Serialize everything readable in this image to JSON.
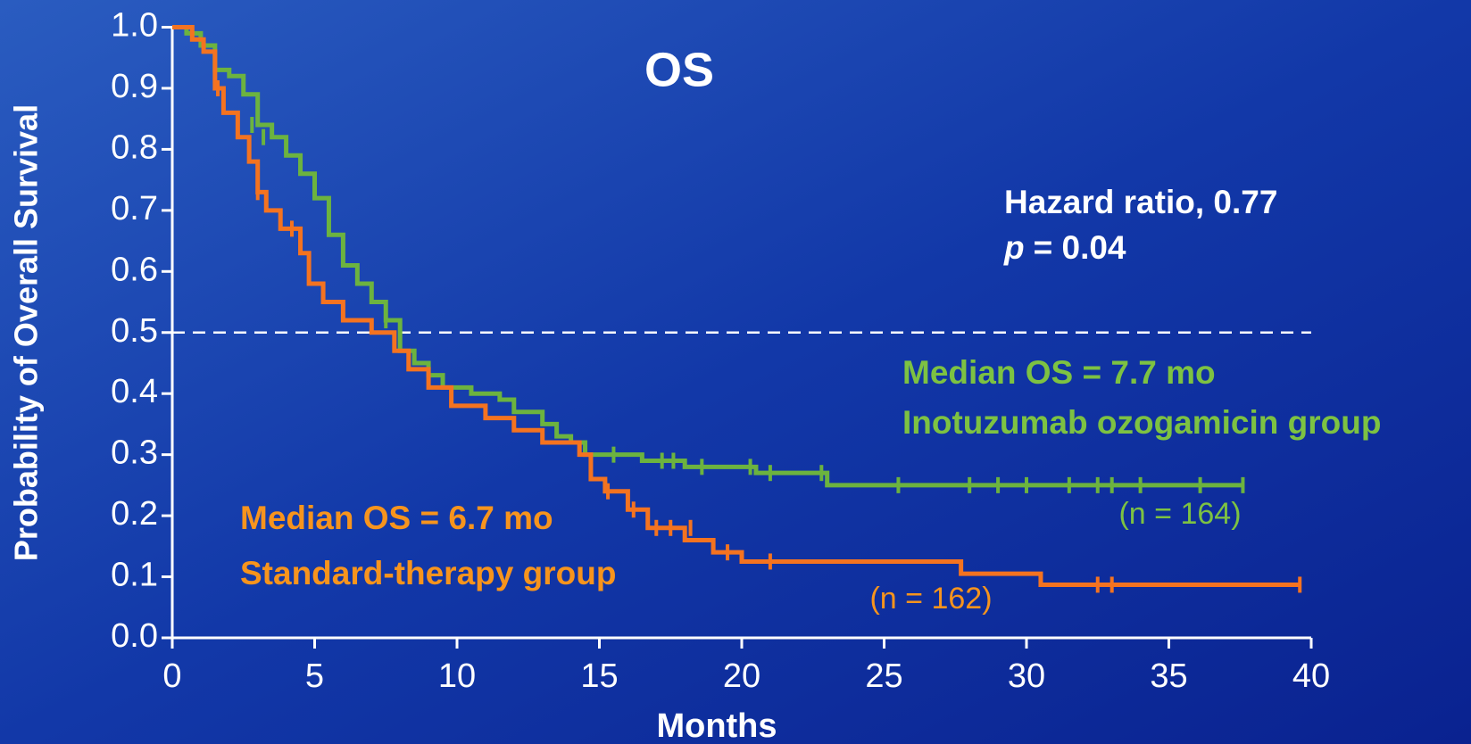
{
  "chart_data": {
    "type": "step",
    "title": "OS",
    "xlabel": "Months",
    "ylabel": "Probability of Overall Survival",
    "xlim": [
      0,
      40
    ],
    "ylim": [
      0,
      1
    ],
    "xticks": [
      0,
      5,
      10,
      15,
      20,
      25,
      30,
      35,
      40
    ],
    "yticks": [
      {
        "value": 0,
        "label": "0.0"
      },
      {
        "value": 0.1,
        "label": "0.1"
      },
      {
        "value": 0.2,
        "label": "0.2"
      },
      {
        "value": 0.3,
        "label": "0.3"
      },
      {
        "value": 0.4,
        "label": "0.4"
      },
      {
        "value": 0.5,
        "label": "0.5"
      },
      {
        "value": 0.6,
        "label": "0.6"
      },
      {
        "value": 0.7,
        "label": "0.7"
      },
      {
        "value": 0.8,
        "label": "0.8"
      },
      {
        "value": 0.9,
        "label": "0.9"
      },
      {
        "value": 1,
        "label": "1.0"
      }
    ],
    "reference_line": 0.5,
    "series": [
      {
        "name": "Inotuzumab ozogamicin group",
        "color": "#6cb33f",
        "x": [
          0,
          0.5,
          1,
          1.5,
          2,
          2.5,
          3,
          3.5,
          4,
          4.5,
          5,
          5.5,
          6,
          6.5,
          7,
          7.5,
          8,
          8.5,
          9,
          9.5,
          10.5,
          11.5,
          12,
          13,
          13.5,
          14,
          14.5,
          16.5,
          18,
          20.5,
          23,
          37.6
        ],
        "values": [
          1.0,
          0.99,
          0.97,
          0.93,
          0.92,
          0.89,
          0.84,
          0.82,
          0.79,
          0.76,
          0.72,
          0.66,
          0.61,
          0.58,
          0.55,
          0.52,
          0.47,
          0.45,
          0.43,
          0.41,
          0.4,
          0.39,
          0.37,
          0.35,
          0.33,
          0.32,
          0.3,
          0.29,
          0.28,
          0.27,
          0.25,
          0.25
        ],
        "censored": {
          "x": [
            1.5,
            2.8,
            3.2,
            7.5,
            15.5,
            17.2,
            17.6,
            18.6,
            20.3,
            21,
            22.8,
            25.5,
            28,
            29,
            30,
            31.5,
            32.5,
            33,
            34,
            36.1,
            37.6
          ],
          "values": [
            0.93,
            0.84,
            0.82,
            0.52,
            0.3,
            0.29,
            0.29,
            0.28,
            0.28,
            0.27,
            0.27,
            0.25,
            0.25,
            0.25,
            0.25,
            0.25,
            0.25,
            0.25,
            0.25,
            0.25,
            0.25
          ]
        },
        "median_label": "Median OS = 7.7 mo",
        "n_label": "(n = 164)"
      },
      {
        "name": "Standard-therapy group",
        "color": "#f47320",
        "x": [
          0,
          0.7,
          1.1,
          1.5,
          1.8,
          2.3,
          2.7,
          3,
          3.3,
          3.8,
          4.5,
          4.8,
          5.3,
          6,
          7,
          7.8,
          8.3,
          9,
          9.8,
          11,
          12,
          13,
          14.3,
          14.7,
          15.2,
          16,
          16.7,
          18,
          19,
          20,
          27.7,
          30.5,
          39.6
        ],
        "values": [
          1.0,
          0.98,
          0.96,
          0.9,
          0.86,
          0.82,
          0.78,
          0.73,
          0.7,
          0.67,
          0.63,
          0.58,
          0.55,
          0.52,
          0.5,
          0.47,
          0.44,
          0.41,
          0.38,
          0.36,
          0.34,
          0.32,
          0.3,
          0.26,
          0.24,
          0.21,
          0.18,
          0.16,
          0.14,
          0.125,
          0.105,
          0.087,
          0.087
        ],
        "censored": {
          "x": [
            1.6,
            3,
            4.2,
            15.3,
            16.2,
            17,
            17.5,
            18.2,
            19.5,
            21,
            32.5,
            33,
            39.6
          ],
          "values": [
            0.9,
            0.73,
            0.67,
            0.24,
            0.21,
            0.18,
            0.18,
            0.18,
            0.14,
            0.125,
            0.087,
            0.087,
            0.087
          ]
        },
        "median_label": "Median OS = 6.7 mo",
        "n_label": "(n = 162)"
      }
    ],
    "annotations": {
      "hazard": "Hazard ratio, 0.77",
      "p_symbol": "p",
      "p_value": "= 0.04"
    }
  }
}
